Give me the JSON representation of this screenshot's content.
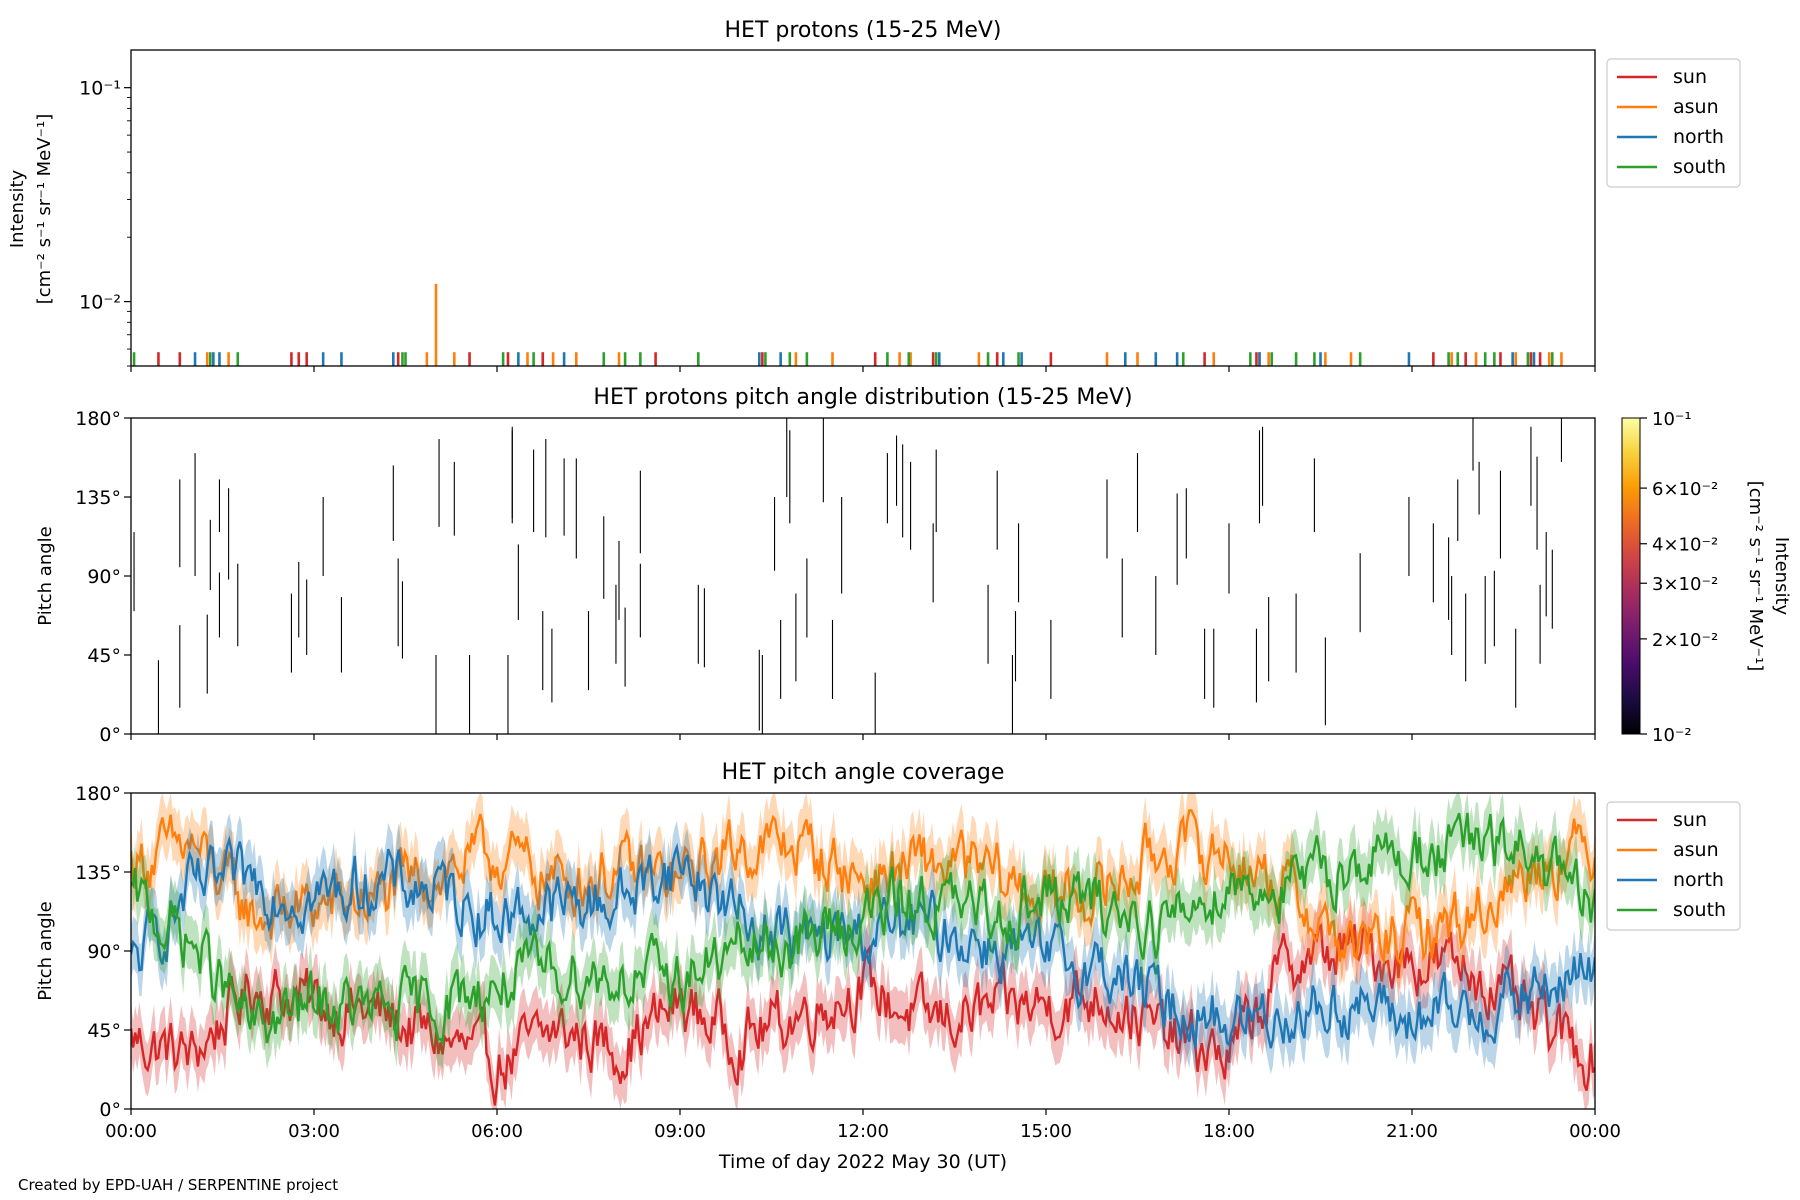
{
  "footer": "Created by EPD-UAH / SERPENTINE project",
  "xaxis": {
    "label": "Time of day 2022 May 30 (UT)",
    "ticks": [
      "00:00",
      "03:00",
      "06:00",
      "09:00",
      "12:00",
      "15:00",
      "18:00",
      "21:00",
      "00:00"
    ]
  },
  "series_colors": {
    "sun": "#d62728",
    "asun": "#ff7f0e",
    "north": "#1f77b4",
    "south": "#2ca02c"
  },
  "chart_data": [
    {
      "type": "bar",
      "title": "HET protons (15-25 MeV)",
      "ylabel_lines": [
        "Intensity",
        "[cm⁻² s⁻¹ sr⁻¹ MeV⁻¹]"
      ],
      "yscale": "log",
      "ylim": [
        0.005,
        0.15
      ],
      "yticks": [
        {
          "label": "10⁻¹",
          "value": 0.1
        },
        {
          "label": "10⁻²",
          "value": 0.01
        }
      ],
      "xlim_hours": [
        0,
        24
      ],
      "legend": {
        "position": "outside-right",
        "entries": [
          "sun",
          "asun",
          "north",
          "south"
        ]
      },
      "series": [
        {
          "name": "sun",
          "hours": [
            0.45,
            0.8,
            2.63,
            2.75,
            2.88,
            4.38,
            5.55,
            6.18,
            6.75,
            8.6,
            10.35,
            12.2,
            13.15,
            14.2,
            15.08,
            17.6,
            18.45,
            21.35,
            21.88,
            22.45,
            22.95,
            23.1
          ],
          "values": [
            0.0058,
            0.0058,
            0.0058,
            0.0058,
            0.0058,
            0.0058,
            0.0058,
            0.0058,
            0.0058,
            0.0058,
            0.0058,
            0.0058,
            0.0058,
            0.0058,
            0.0058,
            0.0058,
            0.0058,
            0.0058,
            0.0058,
            0.0058,
            0.0058,
            0.0058
          ]
        },
        {
          "name": "asun",
          "hours": [
            1.25,
            1.6,
            4.85,
            5.0,
            5.3,
            6.5,
            6.92,
            7.3,
            8.0,
            10.9,
            11.5,
            12.6,
            12.78,
            13.9,
            16.0,
            16.5,
            17.75,
            18.5,
            18.65,
            19.58,
            20.0,
            21.65,
            22.05,
            22.7,
            23.25,
            23.45
          ],
          "values": [
            0.0058,
            0.0058,
            0.0058,
            0.0121,
            0.0058,
            0.0058,
            0.0058,
            0.0058,
            0.0058,
            0.0058,
            0.0058,
            0.0058,
            0.0058,
            0.0058,
            0.0058,
            0.0058,
            0.0058,
            0.0058,
            0.0058,
            0.0058,
            0.0058,
            0.0058,
            0.0058,
            0.0058,
            0.0058,
            0.0058
          ]
        },
        {
          "name": "north",
          "hours": [
            1.05,
            1.35,
            1.45,
            3.15,
            3.45,
            4.3,
            6.35,
            7.1,
            10.3,
            10.65,
            13.25,
            14.3,
            14.6,
            16.3,
            16.8,
            17.15,
            18.5,
            19.5,
            20.95,
            22.65,
            23.0
          ],
          "values": [
            0.0058,
            0.0058,
            0.0058,
            0.0058,
            0.0058,
            0.0058,
            0.0058,
            0.0058,
            0.0058,
            0.0058,
            0.0058,
            0.0058,
            0.0058,
            0.0058,
            0.0058,
            0.0058,
            0.0058,
            0.0058,
            0.0058,
            0.0058,
            0.0058
          ]
        },
        {
          "name": "south",
          "hours": [
            0.05,
            1.3,
            1.75,
            4.45,
            4.5,
            6.1,
            6.6,
            7.75,
            8.1,
            8.35,
            9.3,
            10.4,
            10.8,
            11.08,
            12.4,
            12.75,
            13.2,
            14.05,
            14.55,
            17.25,
            18.35,
            18.7,
            19.1,
            19.4,
            20.15,
            21.6,
            21.75,
            22.2,
            22.35,
            22.9,
            23.3
          ],
          "values": [
            0.0058,
            0.0058,
            0.0058,
            0.0058,
            0.0058,
            0.0058,
            0.0058,
            0.0058,
            0.0058,
            0.0058,
            0.0058,
            0.0058,
            0.0058,
            0.0058,
            0.0058,
            0.0058,
            0.0058,
            0.0058,
            0.0058,
            0.0058,
            0.0058,
            0.0058,
            0.0058,
            0.0058,
            0.0058,
            0.0058,
            0.0058,
            0.0058,
            0.0058,
            0.0058,
            0.0058
          ]
        }
      ]
    },
    {
      "type": "scatter",
      "title": "HET protons pitch angle distribution (15-25 MeV)",
      "ylabel": "Pitch angle",
      "ylim": [
        0,
        180
      ],
      "yticks": [
        "0°",
        "45°",
        "90°",
        "135°",
        "180°"
      ],
      "yticks_values": [
        0,
        45,
        90,
        135,
        180
      ],
      "colorbar": {
        "label_lines": [
          "Intensity",
          "[cm⁻² s⁻¹ sr⁻¹ MeV⁻¹]"
        ],
        "scale": "log",
        "range": [
          0.01,
          0.1
        ],
        "ticks": [
          {
            "label": "10⁻¹",
            "value": 0.1
          },
          {
            "label": "6×10⁻²",
            "value": 0.06
          },
          {
            "label": "4×10⁻²",
            "value": 0.04
          },
          {
            "label": "3×10⁻²",
            "value": 0.03
          },
          {
            "label": "2×10⁻²",
            "value": 0.02
          },
          {
            "label": "10⁻²",
            "value": 0.01
          }
        ],
        "colors": [
          "#000004",
          "#1b0c41",
          "#4a0c6b",
          "#781c6d",
          "#a52c60",
          "#cf4446",
          "#ed6925",
          "#fb9b06",
          "#f7d13d",
          "#fcffa4"
        ]
      },
      "segments": [
        [
          0.05,
          70,
          115
        ],
        [
          0.45,
          0,
          42
        ],
        [
          0.8,
          15,
          62
        ],
        [
          0.8,
          95,
          145
        ],
        [
          1.05,
          90,
          160
        ],
        [
          1.25,
          23,
          68
        ],
        [
          1.3,
          82,
          122
        ],
        [
          1.45,
          115,
          145
        ],
        [
          1.45,
          55,
          92
        ],
        [
          1.6,
          88,
          140
        ],
        [
          1.75,
          50,
          97
        ],
        [
          2.63,
          35,
          80
        ],
        [
          2.75,
          55,
          98
        ],
        [
          2.88,
          45,
          88
        ],
        [
          3.15,
          90,
          135
        ],
        [
          3.45,
          35,
          78
        ],
        [
          4.3,
          110,
          153
        ],
        [
          4.38,
          50,
          100
        ],
        [
          4.45,
          43,
          87
        ],
        [
          5.0,
          0,
          45
        ],
        [
          5.05,
          118,
          168
        ],
        [
          5.3,
          113,
          155
        ],
        [
          5.55,
          0,
          45
        ],
        [
          6.18,
          0,
          45
        ],
        [
          6.25,
          123,
          173
        ],
        [
          6.25,
          120,
          175
        ],
        [
          6.35,
          65,
          108
        ],
        [
          6.6,
          115,
          162
        ],
        [
          6.75,
          25,
          70
        ],
        [
          6.8,
          112,
          168
        ],
        [
          6.9,
          18,
          60
        ],
        [
          7.1,
          113,
          157
        ],
        [
          7.3,
          100,
          157
        ],
        [
          7.5,
          25,
          70
        ],
        [
          7.75,
          77,
          124
        ],
        [
          7.95,
          40,
          85
        ],
        [
          8.0,
          65,
          110
        ],
        [
          8.1,
          27,
          72
        ],
        [
          8.35,
          55,
          97
        ],
        [
          8.35,
          103,
          150
        ],
        [
          9.3,
          40,
          85
        ],
        [
          9.4,
          38,
          83
        ],
        [
          10.3,
          2,
          48
        ],
        [
          10.35,
          0,
          45
        ],
        [
          10.55,
          93,
          135
        ],
        [
          10.65,
          20,
          65
        ],
        [
          10.75,
          135,
          180
        ],
        [
          10.8,
          120,
          173
        ],
        [
          10.9,
          30,
          80
        ],
        [
          11.08,
          55,
          100
        ],
        [
          11.35,
          132,
          180
        ],
        [
          11.5,
          20,
          65
        ],
        [
          11.65,
          80,
          135
        ],
        [
          12.2,
          0,
          35
        ],
        [
          12.4,
          120,
          160
        ],
        [
          12.55,
          130,
          170
        ],
        [
          12.65,
          112,
          165
        ],
        [
          12.78,
          105,
          155
        ],
        [
          13.15,
          75,
          120
        ],
        [
          13.2,
          115,
          162
        ],
        [
          14.05,
          40,
          85
        ],
        [
          14.2,
          105,
          150
        ],
        [
          14.45,
          0,
          45
        ],
        [
          14.5,
          30,
          70
        ],
        [
          14.55,
          75,
          120
        ],
        [
          15.08,
          20,
          65
        ],
        [
          16.0,
          100,
          145
        ],
        [
          16.25,
          55,
          100
        ],
        [
          16.5,
          115,
          160
        ],
        [
          16.8,
          45,
          90
        ],
        [
          17.15,
          85,
          137
        ],
        [
          17.3,
          100,
          140
        ],
        [
          17.6,
          20,
          60
        ],
        [
          17.75,
          15,
          60
        ],
        [
          18.0,
          80,
          120
        ],
        [
          18.45,
          18,
          60
        ],
        [
          18.5,
          120,
          173
        ],
        [
          18.55,
          130,
          175
        ],
        [
          18.65,
          30,
          78
        ],
        [
          19.1,
          35,
          80
        ],
        [
          19.4,
          115,
          157
        ],
        [
          19.58,
          5,
          55
        ],
        [
          20.15,
          58,
          103
        ],
        [
          20.95,
          90,
          135
        ],
        [
          21.35,
          75,
          120
        ],
        [
          21.6,
          65,
          112
        ],
        [
          21.65,
          45,
          90
        ],
        [
          21.75,
          110,
          145
        ],
        [
          21.88,
          30,
          80
        ],
        [
          22.0,
          150,
          180
        ],
        [
          22.1,
          125,
          155
        ],
        [
          22.2,
          40,
          90
        ],
        [
          22.35,
          50,
          93
        ],
        [
          22.45,
          100,
          150
        ],
        [
          22.7,
          15,
          60
        ],
        [
          22.95,
          130,
          175
        ],
        [
          23.05,
          105,
          158
        ],
        [
          23.1,
          40,
          85
        ],
        [
          23.2,
          67,
          115
        ],
        [
          23.3,
          60,
          105
        ],
        [
          23.45,
          155,
          180
        ]
      ]
    },
    {
      "type": "line",
      "title": "HET pitch angle coverage",
      "ylabel": "Pitch angle",
      "ylim": [
        0,
        180
      ],
      "yticks": [
        "0°",
        "45°",
        "90°",
        "135°",
        "180°"
      ],
      "yticks_values": [
        0,
        45,
        90,
        135,
        180
      ],
      "legend": {
        "position": "outside-right",
        "entries": [
          "sun",
          "asun",
          "north",
          "south"
        ]
      },
      "band_halfwidth_deg": 15,
      "x_hours": [
        0,
        1,
        2,
        3,
        4,
        5,
        6,
        7,
        8,
        9,
        10,
        11,
        12,
        13,
        14,
        15,
        16,
        17,
        18,
        19,
        20,
        21,
        22,
        23,
        24
      ],
      "series": [
        {
          "name": "sun",
          "values": [
            40,
            30,
            70,
            60,
            55,
            40,
            25,
            45,
            35,
            60,
            40,
            55,
            70,
            50,
            55,
            60,
            65,
            40,
            30,
            85,
            90,
            85,
            80,
            50,
            30
          ]
        },
        {
          "name": "asun",
          "values": [
            140,
            150,
            110,
            115,
            120,
            135,
            145,
            130,
            135,
            130,
            150,
            150,
            130,
            140,
            135,
            120,
            125,
            150,
            145,
            125,
            90,
            100,
            110,
            140,
            150
          ]
        },
        {
          "name": "north",
          "values": [
            80,
            125,
            130,
            120,
            130,
            125,
            110,
            115,
            120,
            140,
            110,
            95,
            100,
            105,
            95,
            85,
            80,
            60,
            50,
            55,
            60,
            50,
            55,
            65,
            80
          ]
        },
        {
          "name": "south",
          "values": [
            120,
            95,
            45,
            60,
            55,
            60,
            70,
            80,
            75,
            75,
            90,
            95,
            110,
            120,
            110,
            120,
            115,
            105,
            130,
            125,
            140,
            145,
            150,
            145,
            110
          ]
        }
      ]
    }
  ]
}
